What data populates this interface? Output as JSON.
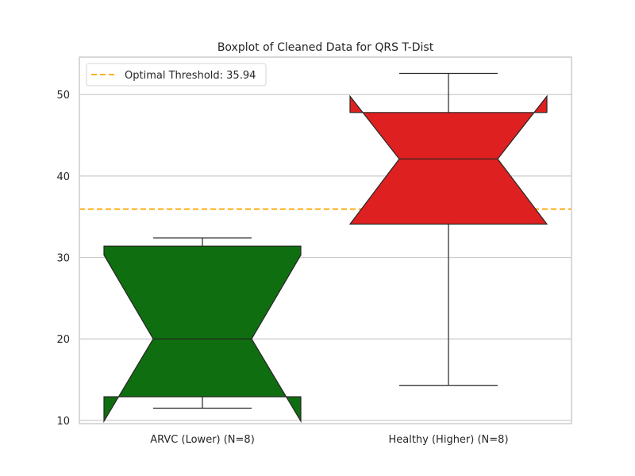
{
  "chart_data": {
    "type": "boxplot",
    "title": "Boxplot of Cleaned Data for QRS T-Dist",
    "xlabel": "",
    "ylabel": "",
    "categories": [
      "ARVC (Lower) (N=8)",
      "Healthy (Higher) (N=8)"
    ],
    "ylim": [
      9.6,
      54.6
    ],
    "yticks": [
      10,
      20,
      30,
      40,
      50
    ],
    "grid": true,
    "notched": true,
    "boxes": [
      {
        "category": "ARVC (Lower) (N=8)",
        "color": "#0f6e0f",
        "whisker_low": 11.5,
        "q1": 12.9,
        "median": 20.0,
        "q3": 31.4,
        "whisker_high": 32.4,
        "notch_low": 9.9,
        "notch_high": 30.3
      },
      {
        "category": "Healthy (Higher) (N=8)",
        "color": "#df2020",
        "whisker_low": 14.3,
        "q1": 34.1,
        "median": 42.1,
        "q3": 47.8,
        "whisker_high": 52.6,
        "notch_low": 34.1,
        "notch_high": 49.8
      }
    ],
    "threshold": {
      "label": "Optimal Threshold: 35.94",
      "value": 35.94,
      "color": "#ffa500",
      "style": "dashed"
    },
    "legend": {
      "position": "top-left",
      "entries": [
        "Optimal Threshold: 35.94"
      ]
    }
  }
}
